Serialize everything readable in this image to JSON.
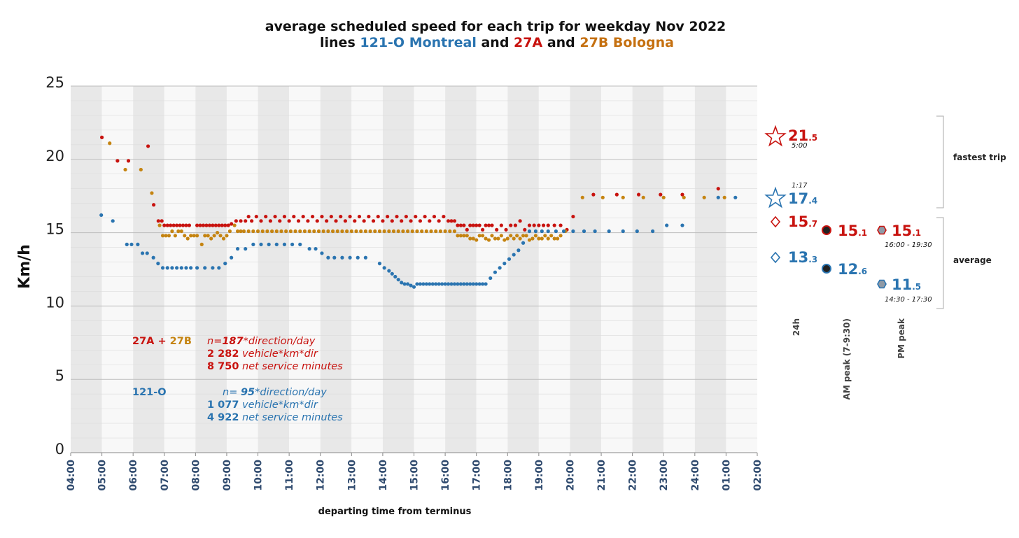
{
  "colors": {
    "montreal": "#2a74b0",
    "bologna_27a": "#c8130f",
    "bologna_27b": "#c58411",
    "band_dark": "#e8e8e8",
    "band_light": "#f8f8f8"
  },
  "title": {
    "line1": "average scheduled speed for each trip for weekday Nov 2022",
    "line2_prefix": "lines ",
    "line2_montreal": "121-O Montreal",
    "line2_and1": " and ",
    "line2_27a": "27A",
    "line2_and2": " and ",
    "line2_27b": "27B Bologna"
  },
  "chart_data": {
    "type": "scatter",
    "xlabel": "departing time from terminus",
    "ylabel": "Km/h",
    "ylim": [
      0,
      25
    ],
    "xlim": [
      4,
      26
    ],
    "yticks": [
      "0",
      "5",
      "10",
      "15",
      "20",
      "25"
    ],
    "xticks": [
      "04:00",
      "05:00",
      "06:00",
      "07:00",
      "08:00",
      "09:00",
      "10:00",
      "11:00",
      "12:00",
      "13:00",
      "14:00",
      "15:00",
      "16:00",
      "17:00",
      "18:00",
      "19:00",
      "20:00",
      "21:00",
      "22:00",
      "23:00",
      "24:00",
      "01:00",
      "02:00"
    ],
    "grid": true,
    "series": [
      {
        "name": "27A",
        "color": "#c8130f",
        "x": [
          5.0,
          5.5,
          5.85,
          6.48,
          6.66,
          6.81,
          6.92,
          7.0,
          7.1,
          7.2,
          7.3,
          7.4,
          7.5,
          7.6,
          7.7,
          7.8,
          8.05,
          8.15,
          8.25,
          8.35,
          8.45,
          8.55,
          8.65,
          8.75,
          8.85,
          8.95,
          9.05,
          9.15,
          9.3,
          9.45,
          9.6,
          9.7,
          9.8,
          9.95,
          10.1,
          10.25,
          10.4,
          10.55,
          10.7,
          10.85,
          11.0,
          11.15,
          11.3,
          11.45,
          11.6,
          11.75,
          11.9,
          12.05,
          12.2,
          12.35,
          12.5,
          12.65,
          12.8,
          12.95,
          13.1,
          13.25,
          13.4,
          13.55,
          13.7,
          13.85,
          14.0,
          14.15,
          14.3,
          14.45,
          14.6,
          14.75,
          14.9,
          15.05,
          15.2,
          15.35,
          15.5,
          15.65,
          15.8,
          15.95,
          16.1,
          16.2,
          16.3,
          16.4,
          16.5,
          16.6,
          16.7,
          16.8,
          16.9,
          17.0,
          17.1,
          17.2,
          17.3,
          17.4,
          17.5,
          17.65,
          17.8,
          17.95,
          18.1,
          18.25,
          18.4,
          18.55,
          18.7,
          18.85,
          19.0,
          19.15,
          19.3,
          19.5,
          19.7,
          19.9,
          20.1,
          20.75,
          21.5,
          22.2,
          22.9,
          23.6,
          24.75
        ],
        "y": [
          21.5,
          19.9,
          19.9,
          20.9,
          16.9,
          15.8,
          15.8,
          15.5,
          15.5,
          15.5,
          15.5,
          15.5,
          15.5,
          15.5,
          15.5,
          15.5,
          15.5,
          15.5,
          15.5,
          15.5,
          15.5,
          15.5,
          15.5,
          15.5,
          15.5,
          15.5,
          15.5,
          15.6,
          15.8,
          15.8,
          15.8,
          16.1,
          15.8,
          16.1,
          15.8,
          16.1,
          15.8,
          16.1,
          15.8,
          16.1,
          15.8,
          16.1,
          15.8,
          16.1,
          15.8,
          16.1,
          15.8,
          16.1,
          15.8,
          16.1,
          15.8,
          16.1,
          15.8,
          16.1,
          15.8,
          16.1,
          15.8,
          16.1,
          15.8,
          16.1,
          15.8,
          16.1,
          15.8,
          16.1,
          15.8,
          16.1,
          15.8,
          16.1,
          15.8,
          16.1,
          15.8,
          16.1,
          15.8,
          16.1,
          15.8,
          15.8,
          15.8,
          15.5,
          15.5,
          15.5,
          15.2,
          15.5,
          15.5,
          15.5,
          15.5,
          15.2,
          15.5,
          15.5,
          15.5,
          15.2,
          15.5,
          15.2,
          15.5,
          15.5,
          15.8,
          15.2,
          15.5,
          15.5,
          15.5,
          15.5,
          15.5,
          15.5,
          15.5,
          15.2,
          16.1,
          17.6,
          17.6,
          17.6,
          17.6,
          17.6,
          18.0
        ]
      },
      {
        "name": "27B",
        "color": "#c58411",
        "x": [
          5.25,
          5.75,
          6.25,
          6.6,
          6.85,
          6.95,
          7.05,
          7.15,
          7.25,
          7.35,
          7.45,
          7.55,
          7.65,
          7.75,
          7.85,
          7.95,
          8.05,
          8.2,
          8.3,
          8.4,
          8.5,
          8.6,
          8.7,
          8.8,
          8.9,
          9.0,
          9.1,
          9.25,
          9.35,
          9.45,
          9.55,
          9.7,
          9.85,
          10.0,
          10.15,
          10.3,
          10.45,
          10.6,
          10.75,
          10.9,
          11.05,
          11.2,
          11.35,
          11.5,
          11.65,
          11.8,
          11.95,
          12.1,
          12.25,
          12.4,
          12.55,
          12.7,
          12.85,
          13.0,
          13.15,
          13.3,
          13.45,
          13.6,
          13.75,
          13.9,
          14.05,
          14.2,
          14.35,
          14.5,
          14.65,
          14.8,
          14.95,
          15.1,
          15.25,
          15.4,
          15.55,
          15.7,
          15.85,
          16.0,
          16.15,
          16.3,
          16.4,
          16.5,
          16.6,
          16.7,
          16.8,
          16.9,
          17.0,
          17.1,
          17.2,
          17.3,
          17.4,
          17.5,
          17.6,
          17.7,
          17.8,
          17.9,
          18.0,
          18.1,
          18.2,
          18.3,
          18.4,
          18.5,
          18.6,
          18.7,
          18.8,
          18.9,
          19.0,
          19.1,
          19.2,
          19.3,
          19.4,
          19.5,
          19.6,
          19.7,
          19.85,
          20.4,
          21.05,
          21.7,
          22.35,
          23.0,
          23.65,
          24.3,
          24.95
        ],
        "y": [
          21.1,
          19.3,
          19.3,
          17.7,
          15.5,
          14.8,
          14.8,
          14.8,
          15.1,
          14.8,
          15.1,
          15.1,
          14.8,
          14.6,
          14.8,
          14.8,
          14.8,
          14.2,
          14.8,
          14.8,
          14.6,
          14.8,
          15.0,
          14.8,
          14.6,
          14.8,
          15.1,
          15.5,
          15.1,
          15.1,
          15.1,
          15.1,
          15.1,
          15.1,
          15.1,
          15.1,
          15.1,
          15.1,
          15.1,
          15.1,
          15.1,
          15.1,
          15.1,
          15.1,
          15.1,
          15.1,
          15.1,
          15.1,
          15.1,
          15.1,
          15.1,
          15.1,
          15.1,
          15.1,
          15.1,
          15.1,
          15.1,
          15.1,
          15.1,
          15.1,
          15.1,
          15.1,
          15.1,
          15.1,
          15.1,
          15.1,
          15.1,
          15.1,
          15.1,
          15.1,
          15.1,
          15.1,
          15.1,
          15.1,
          15.1,
          15.1,
          14.8,
          14.8,
          14.8,
          14.8,
          14.6,
          14.6,
          14.5,
          14.8,
          14.8,
          14.6,
          14.5,
          14.8,
          14.6,
          14.6,
          14.8,
          14.5,
          14.6,
          14.8,
          14.6,
          14.8,
          14.6,
          14.8,
          14.8,
          14.5,
          14.6,
          14.8,
          14.6,
          14.6,
          14.8,
          14.6,
          14.8,
          14.6,
          14.6,
          14.8,
          15.1,
          17.4,
          17.4,
          17.4,
          17.4,
          17.4,
          17.4,
          17.4,
          17.4
        ]
      },
      {
        "name": "121-O",
        "color": "#2a74b0",
        "x": [
          4.98,
          5.35,
          5.8,
          5.95,
          6.15,
          6.3,
          6.45,
          6.65,
          6.8,
          6.95,
          7.1,
          7.25,
          7.4,
          7.55,
          7.7,
          7.85,
          8.05,
          8.3,
          8.55,
          8.75,
          8.95,
          9.15,
          9.35,
          9.6,
          9.85,
          10.1,
          10.35,
          10.6,
          10.85,
          11.1,
          11.35,
          11.65,
          11.85,
          12.05,
          12.25,
          12.45,
          12.7,
          12.95,
          13.2,
          13.45,
          13.9,
          14.05,
          14.2,
          14.3,
          14.4,
          14.5,
          14.6,
          14.7,
          14.8,
          14.9,
          15.0,
          15.1,
          15.2,
          15.3,
          15.4,
          15.5,
          15.6,
          15.7,
          15.8,
          15.9,
          16.0,
          16.1,
          16.2,
          16.3,
          16.4,
          16.5,
          16.6,
          16.7,
          16.8,
          16.9,
          17.0,
          17.1,
          17.2,
          17.3,
          17.45,
          17.6,
          17.75,
          17.9,
          18.05,
          18.2,
          18.35,
          18.5,
          18.7,
          18.9,
          19.1,
          19.3,
          19.55,
          19.8,
          20.1,
          20.45,
          20.8,
          21.25,
          21.7,
          22.15,
          22.65,
          23.1,
          23.6,
          24.75,
          25.3
        ],
        "y": [
          16.2,
          15.8,
          14.2,
          14.2,
          14.2,
          13.6,
          13.6,
          13.3,
          12.9,
          12.6,
          12.6,
          12.6,
          12.6,
          12.6,
          12.6,
          12.6,
          12.6,
          12.6,
          12.6,
          12.6,
          12.9,
          13.3,
          13.9,
          13.9,
          14.2,
          14.2,
          14.2,
          14.2,
          14.2,
          14.2,
          14.2,
          13.9,
          13.9,
          13.6,
          13.3,
          13.3,
          13.3,
          13.3,
          13.3,
          13.3,
          12.9,
          12.6,
          12.4,
          12.2,
          12.0,
          11.8,
          11.6,
          11.5,
          11.5,
          11.4,
          11.3,
          11.5,
          11.5,
          11.5,
          11.5,
          11.5,
          11.5,
          11.5,
          11.5,
          11.5,
          11.5,
          11.5,
          11.5,
          11.5,
          11.5,
          11.5,
          11.5,
          11.5,
          11.5,
          11.5,
          11.5,
          11.5,
          11.5,
          11.5,
          11.9,
          12.3,
          12.6,
          12.9,
          13.2,
          13.5,
          13.8,
          14.3,
          15.1,
          15.1,
          15.1,
          15.1,
          15.1,
          15.1,
          15.1,
          15.1,
          15.1,
          15.1,
          15.1,
          15.1,
          15.1,
          15.5,
          15.5,
          17.4,
          17.4
        ]
      }
    ]
  },
  "annotations": {
    "bologna_label_27a": "27A",
    "bologna_label_plus": " + ",
    "bologna_label_27b": "27B",
    "bologna_n_prefix": "n=",
    "bologna_n_value": "187",
    "bologna_n_suffix": "*direction/day",
    "bologna_vkm_value": "2 282",
    "bologna_vkm_suffix": " vehicle*km*dir",
    "bologna_min_value": "8 750",
    "bologna_min_suffix": " net service minutes",
    "montreal_label": "121-O",
    "montreal_n_prefix": "n= ",
    "montreal_n_value": "95",
    "montreal_n_suffix": "*direction/day",
    "montreal_vkm_value": "1 077",
    "montreal_vkm_suffix": " vehicle*km*dir",
    "montreal_min_value": "4 922",
    "montreal_min_suffix": " net service minutes"
  },
  "summary": {
    "fastest_label": "fastest trip",
    "average_label": "average",
    "col_24h": "24h",
    "col_am": "AM peak (7-9:30)",
    "col_pm": "PM peak",
    "fastest_bologna_int": "21",
    "fastest_bologna_dec": ".5",
    "fastest_bologna_time": "5:00",
    "fastest_montreal_int": "17",
    "fastest_montreal_dec": ".4",
    "fastest_montreal_time": "1:17",
    "avg_bologna_24h_int": "15",
    "avg_bologna_24h_dec": ".7",
    "avg_bologna_am_int": "15",
    "avg_bologna_am_dec": ".1",
    "avg_bologna_pm_int": "15",
    "avg_bologna_pm_dec": ".1",
    "avg_bologna_pm_time": "16:00 - 19:30",
    "avg_montreal_24h_int": "13",
    "avg_montreal_24h_dec": ".3",
    "avg_montreal_am_int": "12",
    "avg_montreal_am_dec": ".6",
    "avg_montreal_pm_int": "11",
    "avg_montreal_pm_dec": ".5",
    "avg_montreal_pm_time": "14:30 - 17:30"
  }
}
